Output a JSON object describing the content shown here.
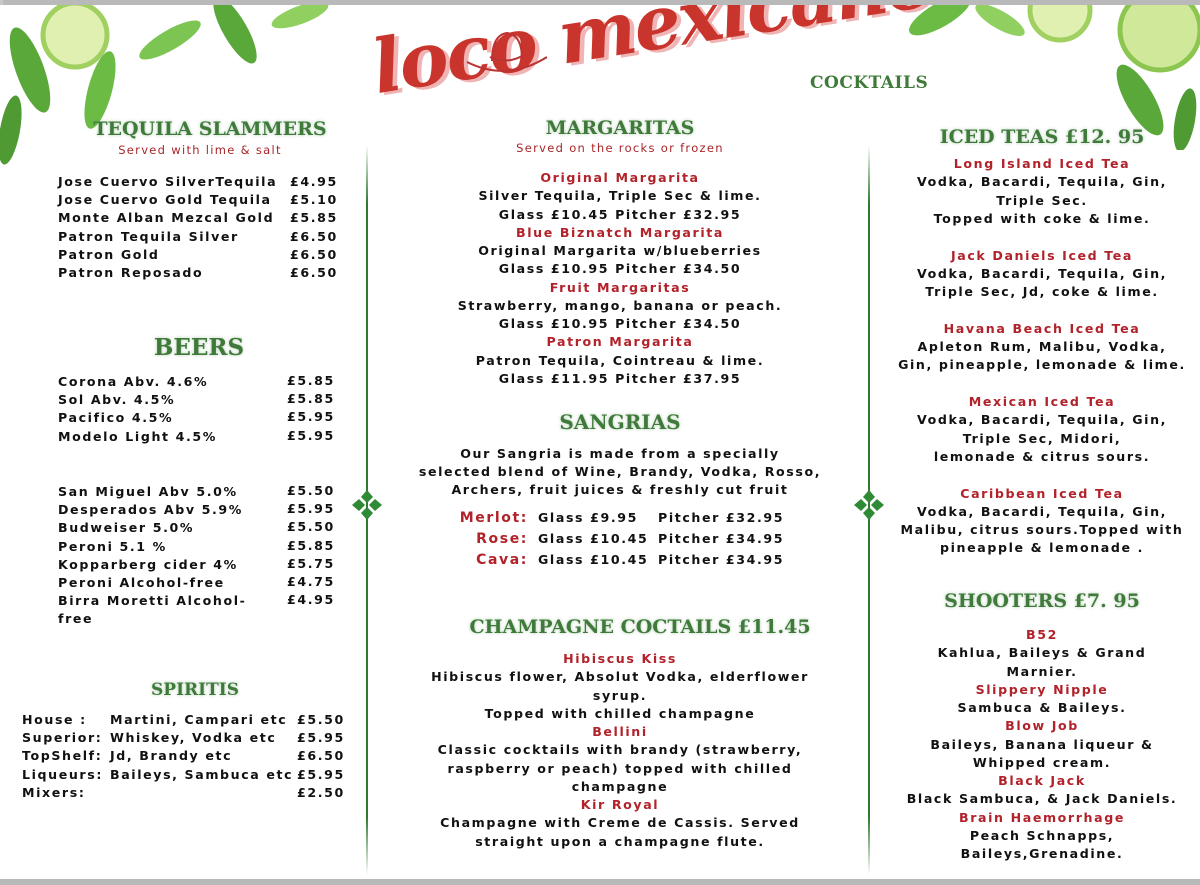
{
  "brand": {
    "logo_text": "loco mexicano",
    "tagline": "COCKTAILS"
  },
  "colors": {
    "heading_green": "#3f7a3a",
    "accent_red": "#b2222a",
    "logo_red": "#c9352c"
  },
  "left": {
    "tequila": {
      "title": "TEQUILA SLAMMERS",
      "subtitle": "Served with lime & salt",
      "items": [
        {
          "name": "Jose Cuervo SilverTequila",
          "price": "£4.95"
        },
        {
          "name": "Jose Cuervo Gold Tequila",
          "price": "£5.10"
        },
        {
          "name": " Monte Alban Mezcal Gold",
          "price": "£5.85"
        },
        {
          "name": "Patron Tequila Silver",
          "price": "£6.50"
        },
        {
          "name": "Patron Gold",
          "price": "£6.50"
        },
        {
          "name": "Patron Reposado",
          "price": "£6.50"
        }
      ]
    },
    "beers": {
      "title": "BEERS",
      "items_a": [
        {
          "name": "Corona Abv. 4.6%",
          "price": "£5.85"
        },
        {
          "name": "Sol Abv. 4.5%",
          "price": "£5.85"
        },
        {
          "name": "Pacifico 4.5%",
          "price": "£5.95"
        },
        {
          "name": "Modelo Light 4.5%",
          "price": "£5.95"
        }
      ],
      "items_b": [
        {
          "name": "San Miguel Abv 5.0%",
          "price": "£5.50"
        },
        {
          "name": "Desperados Abv 5.9%",
          "price": "£5.95"
        },
        {
          "name": "Budweiser 5.0%",
          "price": "£5.50"
        },
        {
          "name": "Peroni 5.1 %",
          "price": "£5.85"
        },
        {
          "name": "Kopparberg cider 4%",
          "price": "£5.75"
        },
        {
          "name": "Peroni Alcohol-free",
          "price": "£4.75"
        },
        {
          "name": "Birra Moretti Alcohol-",
          "price": "£4.95"
        },
        {
          "name": "free",
          "price": ""
        }
      ]
    },
    "spirits": {
      "title": "SPIRITIS",
      "items": [
        {
          "label": "House  :",
          "desc": "Martini, Campari etc",
          "price": "£5.50"
        },
        {
          "label": "Superior:",
          "desc": "Whiskey, Vodka etc",
          "price": "£5.95"
        },
        {
          "label": "TopShelf:",
          "desc": "Jd, Brandy etc",
          "price": "£6.50"
        },
        {
          "label": "Liqueurs:",
          "desc": "Baileys, Sambuca etc",
          "price": "£5.95"
        },
        {
          "label": "Mixers:",
          "desc": "",
          "price": "£2.50"
        }
      ]
    }
  },
  "middle": {
    "margaritas": {
      "title": "MARGARITAS",
      "subtitle": "Served on the rocks or frozen",
      "items": [
        {
          "name": "Original Margarita",
          "lines": [
            "Silver Tequila, Triple Sec & lime.",
            "Glass £10.45      Pitcher £32.95"
          ]
        },
        {
          "name": "Blue Biznatch Margarita",
          "lines": [
            "Original Margarita w/blueberries",
            "Glass £10.95      Pitcher £34.50"
          ]
        },
        {
          "name": "Fruit Margaritas",
          "lines": [
            "Strawberry, mango, banana or peach.",
            "Glass £10.95     Pitcher £34.50"
          ]
        },
        {
          "name": "Patron Margarita",
          "lines": [
            "Patron Tequila, Cointreau & lime.",
            "Glass £11.95     Pitcher £37.95"
          ]
        }
      ]
    },
    "sangrias": {
      "title": "SANGRIAS",
      "description": [
        "Our Sangria is made from a specially",
        "selected blend of Wine, Brandy, Vodka, Rosso,",
        "Archers, fruit juices & freshly cut fruit"
      ],
      "rows": [
        {
          "label": "Merlot:",
          "glass": "Glass £9.95",
          "pitcher": "Pitcher £32.95"
        },
        {
          "label": "Rose:",
          "glass": "Glass £10.45",
          "pitcher": "Pitcher £34.95"
        },
        {
          "label": "Cava:",
          "glass": "Glass £10.45",
          "pitcher": "Pitcher £34.95"
        }
      ]
    },
    "champagne": {
      "title": "CHAMPAGNE COCTAILS £11.45",
      "items": [
        {
          "name": "Hibiscus Kiss",
          "lines": [
            "Hibiscus flower, Absolut Vodka, elderflower",
            "syrup.",
            "Topped with chilled champagne"
          ]
        },
        {
          "name": "Bellini",
          "lines": [
            "Classic cocktails with brandy (strawberry,",
            "raspberry or peach) topped with chilled",
            "champagne"
          ]
        },
        {
          "name": "Kir Royal",
          "lines": [
            "Champagne with Creme de Cassis. Served",
            "straight upon a champagne flute."
          ]
        }
      ]
    }
  },
  "right": {
    "iced_teas": {
      "title": "ICED TEAS £12. 95",
      "items": [
        {
          "name": "Long Island Iced Tea",
          "lines": [
            "Vodka, Bacardi, Tequila, Gin,",
            "Triple Sec.",
            "Topped with coke & lime."
          ]
        },
        {
          "name": "Jack Daniels Iced Tea",
          "lines": [
            "Vodka, Bacardi, Tequila, Gin,",
            "Triple Sec, Jd, coke & lime."
          ]
        },
        {
          "name": "Havana Beach Iced Tea",
          "lines": [
            "Apleton Rum, Malibu, Vodka,",
            "Gin, pineapple, lemonade & lime."
          ]
        },
        {
          "name": "Mexican Iced Tea",
          "lines": [
            "Vodka, Bacardi, Tequila, Gin,",
            "Triple Sec, Midori,",
            "lemonade & citrus sours."
          ]
        },
        {
          "name": "Caribbean Iced Tea",
          "lines": [
            "Vodka, Bacardi, Tequila, Gin,",
            "Malibu, citrus sours.Topped with",
            "pineapple & lemonade ."
          ]
        }
      ]
    },
    "shooters": {
      "title": "SHOOTERS £7. 95",
      "items": [
        {
          "name": "B52",
          "lines": [
            "Kahlua, Baileys & Grand",
            "Marnier."
          ]
        },
        {
          "name": "Slippery Nipple",
          "lines": [
            "Sambuca & Baileys."
          ]
        },
        {
          "name": "Blow Job",
          "lines": [
            "Baileys, Banana liqueur &",
            "Whipped cream."
          ]
        },
        {
          "name": "Black Jack",
          "lines": [
            "Black Sambuca, & Jack Daniels."
          ]
        },
        {
          "name": "Brain Haemorrhage",
          "lines": [
            "Peach Schnapps,",
            "Baileys,Grenadine."
          ]
        }
      ]
    }
  }
}
